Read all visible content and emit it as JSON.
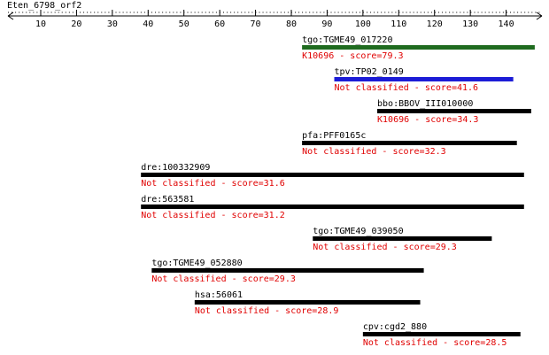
{
  "chart_data": {
    "type": "range",
    "title": "Eten_6798_orf2",
    "xlim": [
      1,
      150
    ],
    "xticks": [
      10,
      20,
      30,
      40,
      50,
      60,
      70,
      80,
      90,
      100,
      110,
      120,
      130,
      140
    ],
    "hits": [
      {
        "name": "tgo:TGME49_017220",
        "note": "K10696 - score=79.3",
        "start": 83,
        "end": 148,
        "color": "#1f6b1f"
      },
      {
        "name": "tpv:TP02_0149",
        "note": "Not classified - score=41.6",
        "start": 92,
        "end": 142,
        "color": "#1c1cd6"
      },
      {
        "name": "bbo:BBOV_III010000",
        "note": "K10696 - score=34.3",
        "start": 104,
        "end": 147,
        "color": "#000000"
      },
      {
        "name": "pfa:PFF0165c",
        "note": "Not classified - score=32.3",
        "start": 83,
        "end": 143,
        "color": "#000000"
      },
      {
        "name": "dre:100332909",
        "note": "Not classified - score=31.6",
        "start": 38,
        "end": 145,
        "color": "#000000"
      },
      {
        "name": "dre:563581",
        "note": "Not classified - score=31.2",
        "start": 38,
        "end": 145,
        "color": "#000000"
      },
      {
        "name": "tgo:TGME49_039050",
        "note": "Not classified - score=29.3",
        "start": 86,
        "end": 136,
        "color": "#000000"
      },
      {
        "name": "tgo:TGME49_052880",
        "note": "Not classified - score=29.3",
        "start": 41,
        "end": 117,
        "color": "#000000"
      },
      {
        "name": "hsa:56061",
        "note": "Not classified - score=28.9",
        "start": 53,
        "end": 116,
        "color": "#000000"
      },
      {
        "name": "cpv:cgd2_880",
        "note": "Not classified - score=28.5",
        "start": 100,
        "end": 144,
        "color": "#000000"
      }
    ]
  }
}
